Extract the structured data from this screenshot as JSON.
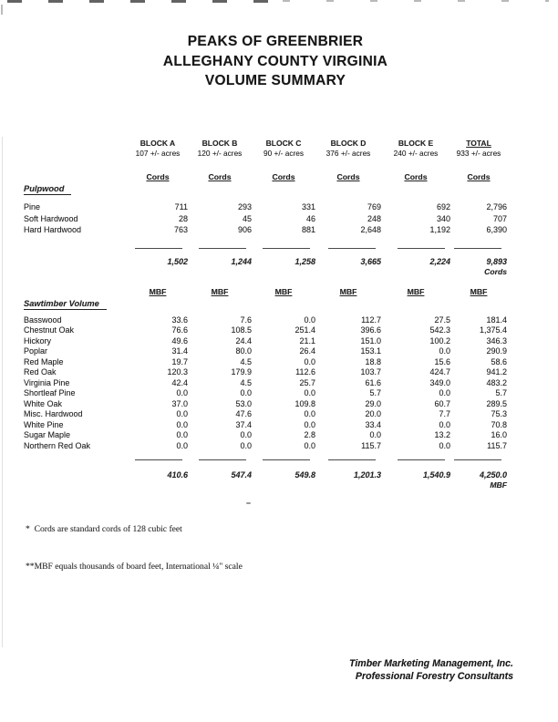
{
  "colors": {
    "ink": "#1f1f1f",
    "paper": "#ffffff"
  },
  "title": {
    "line1": "PEAKS OF GREENBRIER",
    "line2": "ALLEGHANY COUNTY VIRGINIA",
    "line3": "VOLUME SUMMARY"
  },
  "table": {
    "columns": [
      {
        "name": "BLOCK A",
        "acres": "107 +/- acres"
      },
      {
        "name": "BLOCK B",
        "acres": "120 +/- acres"
      },
      {
        "name": "BLOCK C",
        "acres": "90 +/- acres"
      },
      {
        "name": "BLOCK D",
        "acres": "376 +/- acres"
      },
      {
        "name": "BLOCK E",
        "acres": "240 +/- acres"
      },
      {
        "name": "TOTAL",
        "acres": "933 +/- acres"
      }
    ],
    "pulpwood": {
      "heading": "Pulpwood",
      "unit_header": "Cords",
      "rows": [
        {
          "label": "Pine",
          "values": [
            "711",
            "293",
            "331",
            "769",
            "692",
            "2,796"
          ]
        },
        {
          "label": "Soft Hardwood",
          "values": [
            "28",
            "45",
            "46",
            "248",
            "340",
            "707"
          ]
        },
        {
          "label": "Hard Hardwood",
          "values": [
            "763",
            "906",
            "881",
            "2,648",
            "1,192",
            "6,390"
          ]
        }
      ],
      "totals": [
        "1,502",
        "1,244",
        "1,258",
        "3,665",
        "2,224",
        "9,893"
      ],
      "totals_unit": "Cords"
    },
    "sawtimber": {
      "heading": "Sawtimber Volume",
      "unit_header": "MBF",
      "rows": [
        {
          "label": "Basswood",
          "values": [
            "33.6",
            "7.6",
            "0.0",
            "112.7",
            "27.5",
            "181.4"
          ]
        },
        {
          "label": "Chestnut Oak",
          "values": [
            "76.6",
            "108.5",
            "251.4",
            "396.6",
            "542.3",
            "1,375.4"
          ]
        },
        {
          "label": "Hickory",
          "values": [
            "49.6",
            "24.4",
            "21.1",
            "151.0",
            "100.2",
            "346.3"
          ]
        },
        {
          "label": "Poplar",
          "values": [
            "31.4",
            "80.0",
            "26.4",
            "153.1",
            "0.0",
            "290.9"
          ]
        },
        {
          "label": "Red Maple",
          "values": [
            "19.7",
            "4.5",
            "0.0",
            "18.8",
            "15.6",
            "58.6"
          ]
        },
        {
          "label": "Red Oak",
          "values": [
            "120.3",
            "179.9",
            "112.6",
            "103.7",
            "424.7",
            "941.2"
          ]
        },
        {
          "label": "Virginia Pine",
          "values": [
            "42.4",
            "4.5",
            "25.7",
            "61.6",
            "349.0",
            "483.2"
          ]
        },
        {
          "label": "Shortleaf Pine",
          "values": [
            "0.0",
            "0.0",
            "0.0",
            "5.7",
            "0.0",
            "5.7"
          ]
        },
        {
          "label": "White Oak",
          "values": [
            "37.0",
            "53.0",
            "109.8",
            "29.0",
            "60.7",
            "289.5"
          ]
        },
        {
          "label": "Misc. Hardwood",
          "values": [
            "0.0",
            "47.6",
            "0.0",
            "20.0",
            "7.7",
            "75.3"
          ]
        },
        {
          "label": "White Pine",
          "values": [
            "0.0",
            "37.4",
            "0.0",
            "33.4",
            "0.0",
            "70.8"
          ]
        },
        {
          "label": "Sugar Maple",
          "values": [
            "0.0",
            "0.0",
            "2.8",
            "0.0",
            "13.2",
            "16.0"
          ]
        },
        {
          "label": "Northern Red Oak",
          "values": [
            "0.0",
            "0.0",
            "0.0",
            "115.7",
            "0.0",
            "115.7"
          ]
        }
      ],
      "totals": [
        "410.6",
        "547.4",
        "549.8",
        "1,201.3",
        "1,540.9",
        "4,250.0"
      ],
      "totals_unit": "MBF"
    }
  },
  "footnotes": {
    "line1": "*  Cords are standard cords of 128 cubic feet",
    "line2": "**MBF equals thousands of board feet, International ¼\" scale"
  },
  "signature": {
    "line1": "Timber Marketing Management, Inc.",
    "line2": "Professional Forestry Consultants"
  }
}
